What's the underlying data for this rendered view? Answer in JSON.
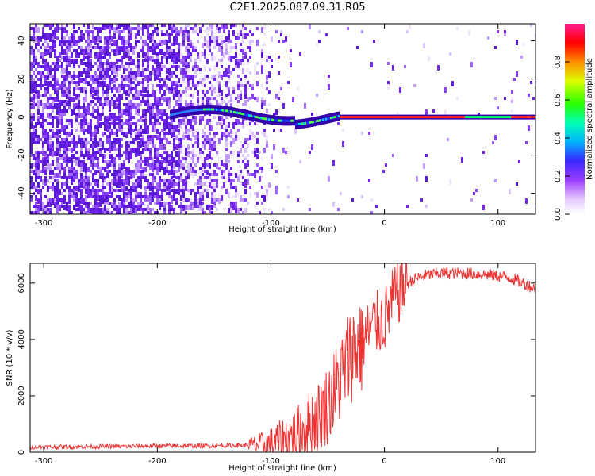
{
  "title": "C2E1.2025.087.09.31.R05",
  "colors": {
    "snr_line": "#ee3333",
    "axis": "#000000",
    "background": "#ffffff"
  },
  "chart_data": [
    {
      "type": "heatmap",
      "xlabel": "Height of straight line (km)",
      "ylabel": "Frequency (Hz)",
      "xlim": [
        -312,
        133
      ],
      "ylim": [
        -51,
        49
      ],
      "x_ticks": [
        -300,
        -200,
        -100,
        0,
        100
      ],
      "y_ticks": [
        -40,
        -20,
        0,
        20,
        40
      ],
      "colorbar": {
        "label": "Normalized spectral amplitude",
        "range": [
          0,
          1
        ],
        "ticks": [
          "0.0",
          "0.2",
          "0.4",
          "0.6",
          "0.8"
        ],
        "colormap": "rainbow (white-violet-blue-cyan-green-yellow-red-magenta)"
      },
      "features": [
        {
          "name": "noise",
          "x_range": [
            -312,
            -100
          ],
          "freq_range": [
            -51,
            49
          ],
          "amplitude": 0.15
        },
        {
          "name": "carrier",
          "x_range": [
            -190,
            133
          ],
          "freq_center": [
            3,
            0
          ],
          "amplitude": 0.9
        }
      ]
    },
    {
      "type": "line",
      "xlabel": "Height of straight line (km)",
      "ylabel": "SNR (10 * v/v)",
      "xlim": [
        -312,
        133
      ],
      "ylim": [
        0,
        6700
      ],
      "x_ticks": [
        -300,
        -200,
        -100,
        0,
        100
      ],
      "y_ticks": [
        0,
        2000,
        4000,
        6000
      ],
      "series": [
        {
          "x": [
            -312,
            -250,
            -200,
            -150,
            -120,
            -100,
            -90,
            -80,
            -70,
            -60,
            -50,
            -40,
            -30,
            -20,
            -10,
            0,
            10,
            20,
            30,
            40,
            50,
            70,
            90,
            110,
            125,
            133
          ],
          "values": [
            180,
            200,
            220,
            230,
            250,
            300,
            450,
            600,
            900,
            1200,
            1700,
            2500,
            3500,
            3900,
            4500,
            4700,
            5600,
            6000,
            6200,
            6300,
            6350,
            6350,
            6300,
            6200,
            5950,
            5800
          ]
        }
      ]
    }
  ]
}
